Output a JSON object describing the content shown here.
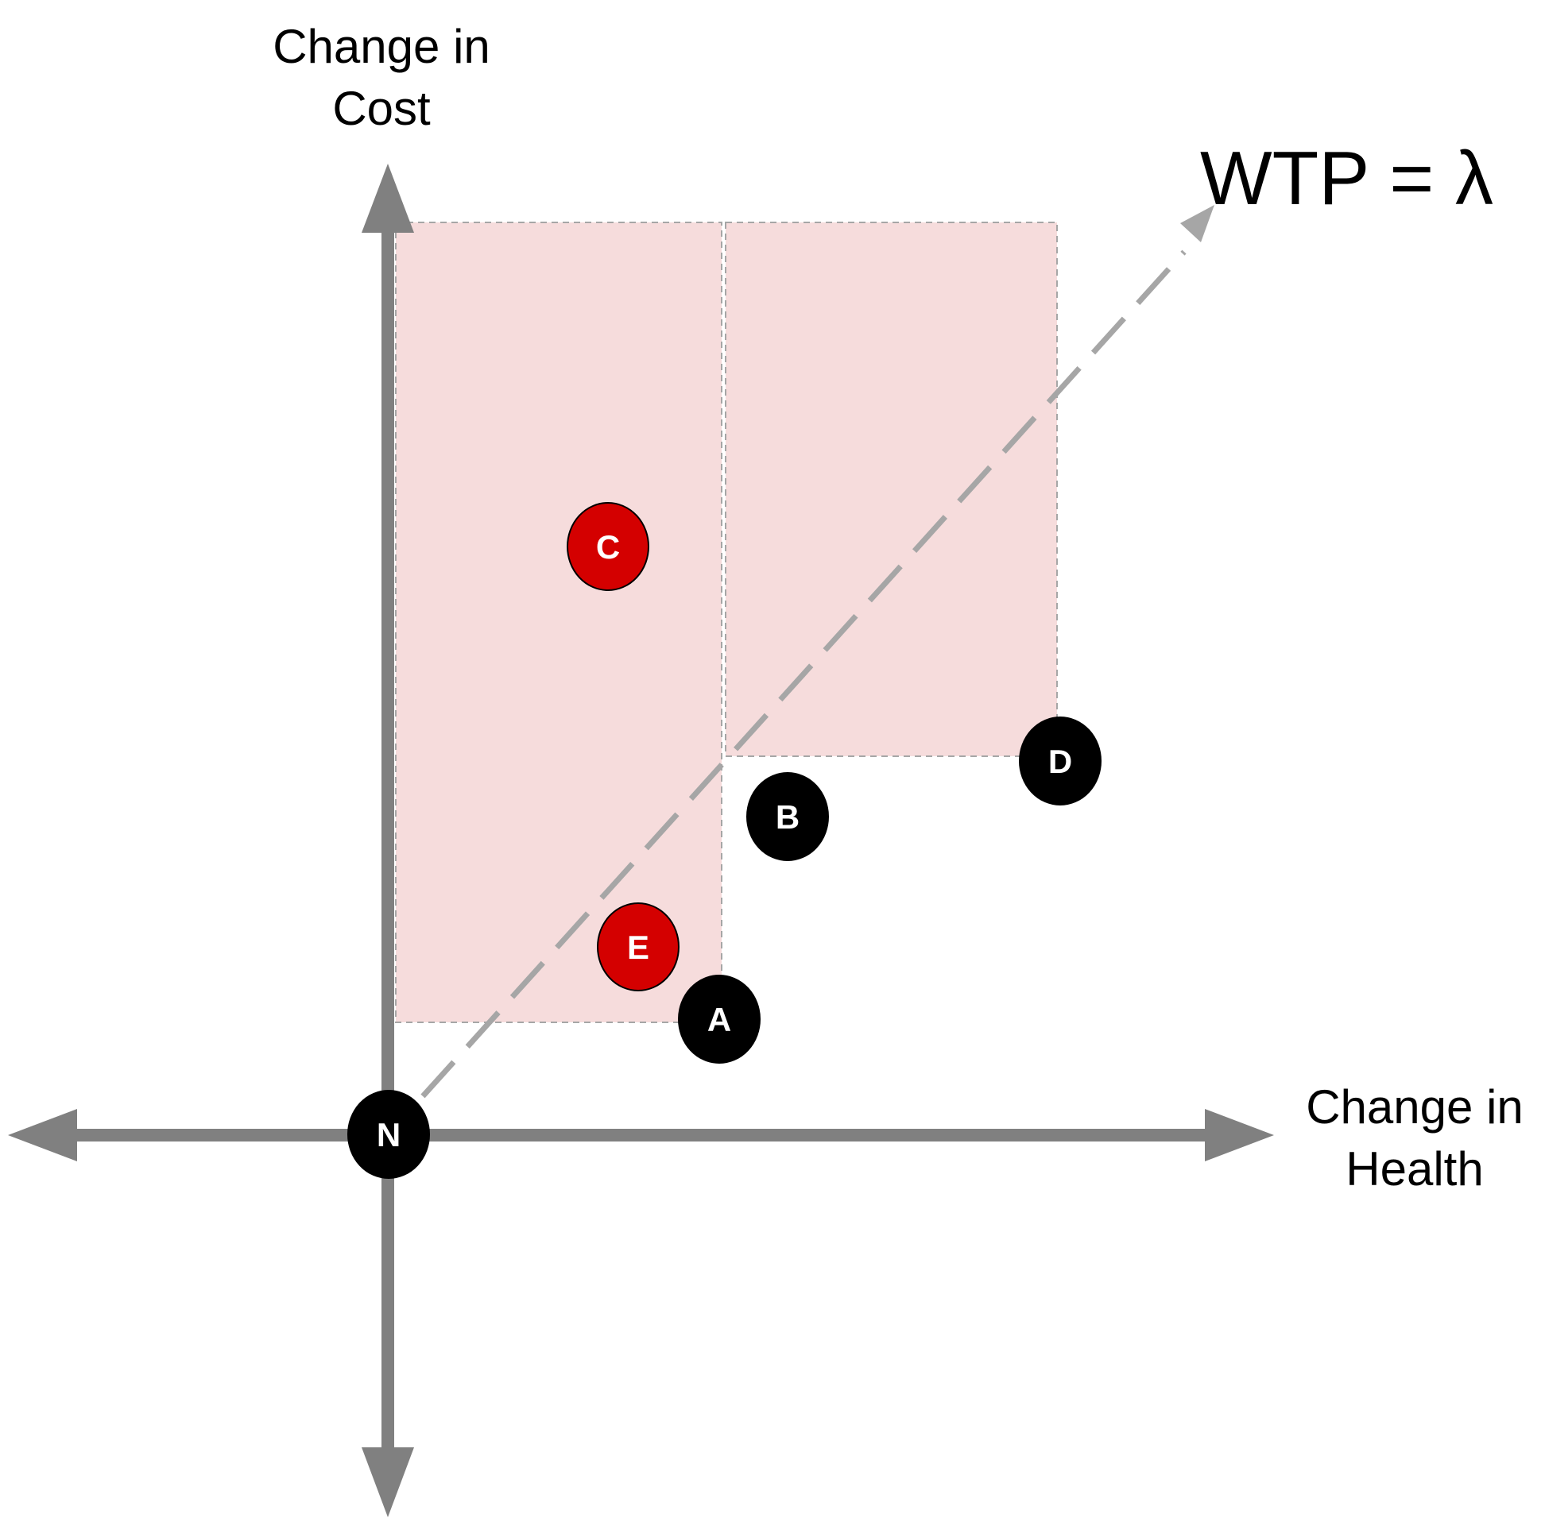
{
  "axes": {
    "y_label": "Change in\nCost",
    "x_label": "Change in\nHealth"
  },
  "wtp_line": {
    "label": "WTP = λ"
  },
  "regions": [
    {
      "name": "region-left",
      "color": "#f6dcdc"
    },
    {
      "name": "region-right",
      "color": "#f6dcdc"
    }
  ],
  "points": [
    {
      "id": "N",
      "label": "N",
      "fill": "#000000"
    },
    {
      "id": "A",
      "label": "A",
      "fill": "#000000"
    },
    {
      "id": "B",
      "label": "B",
      "fill": "#000000"
    },
    {
      "id": "C",
      "label": "C",
      "fill": "#d40000"
    },
    {
      "id": "D",
      "label": "D",
      "fill": "#000000"
    },
    {
      "id": "E",
      "label": "E",
      "fill": "#d40000"
    }
  ],
  "colors": {
    "axis": "#808080",
    "wtp_line": "#a6a6a6",
    "region_border": "#a6a6a6",
    "point_text": "#ffffff"
  }
}
